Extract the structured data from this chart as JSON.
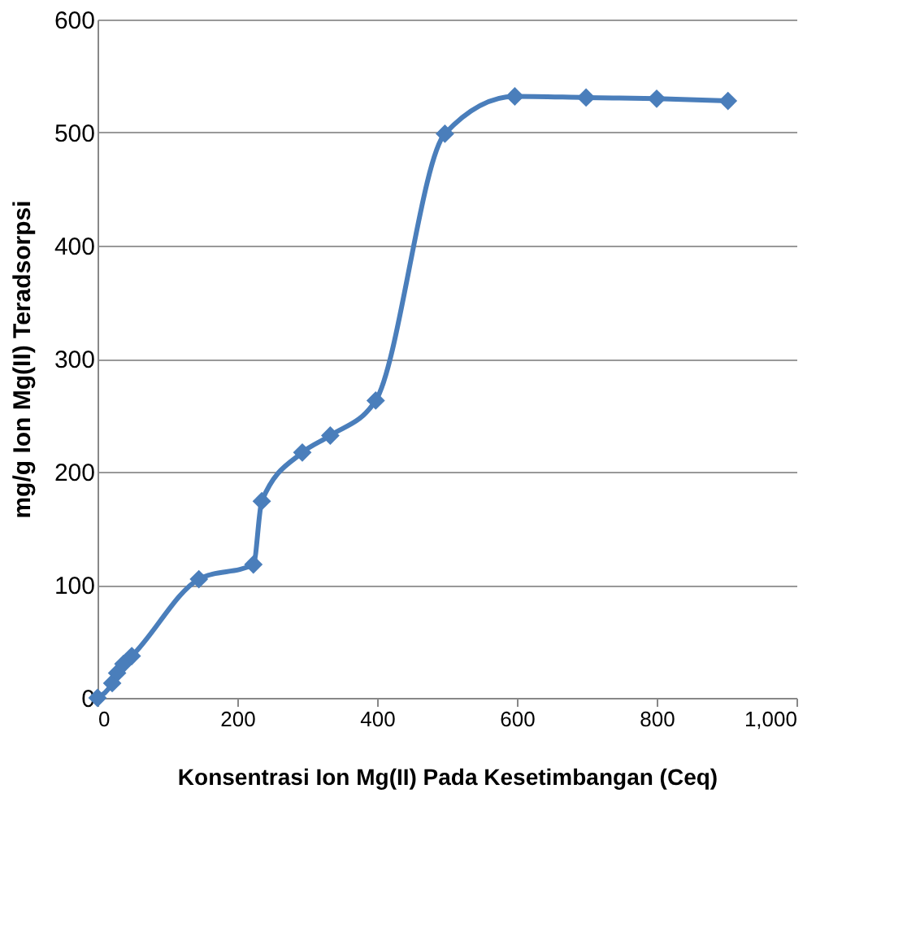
{
  "chart_data": {
    "type": "line",
    "xlabel": "Konsentrasi Ion Mg(II) Pada Kesetimbangan (Ceq)",
    "ylabel": "mg/g Ion Mg(II) Teradsorpsi",
    "x": [
      0,
      21,
      28,
      37,
      49,
      145,
      223,
      235,
      293,
      333,
      398,
      497,
      597,
      699,
      800,
      902
    ],
    "series": [
      {
        "color": "#4a7ebb",
        "values": [
          0,
          13,
          22,
          30,
          37,
          105,
          118,
          174,
          217,
          232,
          263,
          499,
          532,
          531,
          530,
          528
        ]
      }
    ],
    "xlim": [
      0,
      1000
    ],
    "xticks": [
      0,
      200,
      400,
      600,
      800,
      {
        "value": 1000,
        "label": "1,000"
      }
    ],
    "ylim": [
      0,
      600
    ],
    "yticks": [
      0,
      100,
      200,
      300,
      400,
      500,
      600
    ],
    "grid": "y",
    "marker": "diamond",
    "line_style": "solid"
  }
}
